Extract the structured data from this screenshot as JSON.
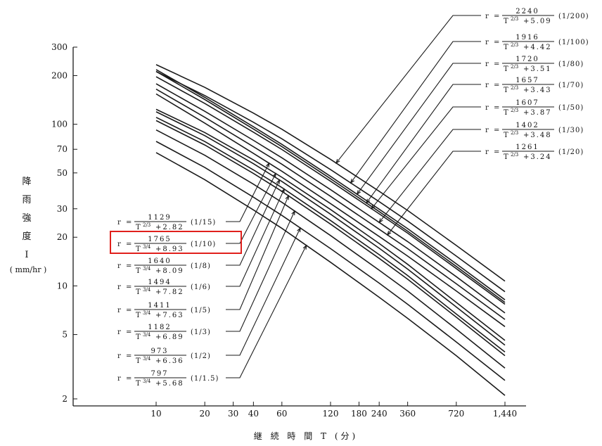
{
  "chart_data": {
    "type": "line",
    "title": "",
    "xlabel": "継 続 時 間 T (分)",
    "ylabel_chars": [
      "降",
      "雨",
      "強",
      "度",
      "I"
    ],
    "ylabel_unit": "( mm/hr )",
    "x_scale": "log",
    "y_scale": "log",
    "xlim": [
      10,
      1440
    ],
    "ylim": [
      2,
      300
    ],
    "x_ticks": [
      10,
      20,
      30,
      40,
      60,
      120,
      180,
      240,
      360,
      720,
      1440
    ],
    "x_tick_labels": [
      "10",
      "20",
      "30",
      "40",
      "60",
      "120",
      "180",
      "240",
      "360",
      "720",
      "1,440"
    ],
    "y_ticks": [
      2,
      5,
      10,
      20,
      30,
      50,
      70,
      100,
      200,
      300
    ],
    "y_tick_labels": [
      "2",
      "5",
      "10",
      "20",
      "30",
      "50",
      "70",
      "100",
      "200",
      "300"
    ],
    "grid": false,
    "x": [
      10,
      20,
      40,
      60,
      120,
      240,
      360,
      720,
      1440
    ],
    "series": [
      {
        "name": "(1/200)",
        "formula": {
          "prefix": "r =",
          "num": "2240",
          "den_base": "T",
          "den_exp": "2/3",
          "den_const": "+5.09"
        },
        "values": [
          233.7,
          169.1,
          117.2,
          93.2,
          60.6,
          38.5,
          29.3,
          17.8,
          10.7
        ]
      },
      {
        "name": "(1/100)",
        "formula": {
          "prefix": "r =",
          "num": "1916",
          "den_base": "T",
          "den_exp": "2/3",
          "den_const": "+4.42"
        },
        "values": [
          211.9,
          150.6,
          102.9,
          81.3,
          52.4,
          33.2,
          25.2,
          15.3,
          9.2
        ]
      },
      {
        "name": "(1/80)",
        "formula": {
          "prefix": "r =",
          "num": "1720",
          "den_base": "T",
          "den_exp": "2/3",
          "den_const": "+3.51"
        },
        "values": [
          218.0,
          146.5,
          96.5,
          75.1,
          47.6,
          29.8,
          22.6,
          13.7,
          8.2
        ]
      },
      {
        "name": "(1/70)",
        "formula": {
          "prefix": "r =",
          "num": "1657",
          "den_base": "T",
          "den_exp": "2/3",
          "den_const": "+3.43"
        },
        "values": [
          212.3,
          142.2,
          93.4,
          72.7,
          46.0,
          28.8,
          21.8,
          13.2,
          7.9
        ]
      },
      {
        "name": "(1/50)",
        "formula": {
          "prefix": "r =",
          "num": "1607",
          "den_base": "T",
          "den_exp": "2/3",
          "den_const": "+3.87"
        },
        "values": [
          196.7,
          134.4,
          89.3,
          69.8,
          44.4,
          27.9,
          21.2,
          12.8,
          7.7
        ]
      },
      {
        "name": "(1/30)",
        "formula": {
          "prefix": "r =",
          "num": "1402",
          "den_base": "T",
          "den_exp": "2/3",
          "den_const": "+3.48"
        },
        "values": [
          177.9,
          120.3,
          79.5,
          62.0,
          39.4,
          24.7,
          18.8,
          11.4,
          6.8
        ]
      },
      {
        "name": "(1/20)",
        "formula": {
          "prefix": "r =",
          "num": "1261",
          "den_base": "T",
          "den_exp": "2/3",
          "den_const": "+3.24"
        },
        "values": [
          164.9,
          110.5,
          72.6,
          56.6,
          35.8,
          22.4,
          17.0,
          10.3,
          6.2
        ]
      },
      {
        "name": "(1/15)",
        "formula": {
          "prefix": "r =",
          "num": "1129",
          "den_base": "T",
          "den_exp": "2/3",
          "den_const": "+2.82"
        },
        "values": [
          154.0,
          101.5,
          66.0,
          51.2,
          32.3,
          20.2,
          15.3,
          9.3,
          5.6
        ]
      },
      {
        "name": "(1/10)",
        "formula": {
          "prefix": "r =",
          "num": "1765",
          "den_base": "T",
          "den_exp": "3/4",
          "den_const": "+8.93"
        },
        "values": [
          123.7,
          88.9,
          60.2,
          47.0,
          29.7,
          18.3,
          13.6,
          7.9,
          4.6
        ]
      },
      {
        "name": "(1/8)",
        "formula": {
          "prefix": "r =",
          "num": "1640",
          "den_base": "T",
          "den_exp": "3/4",
          "den_const": "+8.09"
        },
        "values": [
          119.5,
          85.0,
          57.0,
          44.3,
          27.8,
          17.1,
          12.7,
          7.4,
          4.3
        ]
      },
      {
        "name": "(1/6)",
        "formula": {
          "prefix": "r =",
          "num": "1494",
          "den_base": "T",
          "den_exp": "3/4",
          "den_const": "+7.82"
        },
        "values": [
          110.4,
          78.2,
          52.2,
          40.6,
          25.4,
          15.6,
          11.6,
          6.7,
          3.9
        ]
      },
      {
        "name": "(1/5)",
        "formula": {
          "prefix": "r =",
          "num": "1411",
          "den_base": "T",
          "den_exp": "3/4",
          "den_const": "+7.63"
        },
        "values": [
          105.4,
          74.4,
          49.6,
          38.5,
          24.1,
          14.8,
          11.0,
          6.4,
          3.7
        ]
      },
      {
        "name": "(1/3)",
        "formula": {
          "prefix": "r =",
          "num": "1182",
          "den_base": "T",
          "den_exp": "3/4",
          "den_const": "+6.89"
        },
        "values": [
          92.2,
          64.3,
          42.6,
          32.9,
          20.5,
          12.5,
          9.3,
          5.4,
          3.1
        ]
      },
      {
        "name": "(1/2)",
        "formula": {
          "prefix": "r =",
          "num": "973",
          "den_base": "T",
          "den_exp": "3/4",
          "den_const": "+6.36"
        },
        "values": [
          78.3,
          54.0,
          35.4,
          27.3,
          17.0,
          10.4,
          7.7,
          4.5,
          2.6
        ]
      },
      {
        "name": "(1/1.5)",
        "formula": {
          "prefix": "r =",
          "num": "797",
          "den_base": "T",
          "den_exp": "3/4",
          "den_const": "+5.68"
        },
        "values": [
          66.8,
          45.4,
          29.5,
          22.7,
          14.0,
          8.5,
          6.3,
          3.7,
          2.1
        ]
      }
    ],
    "highlight": {
      "series": "(1/10)",
      "color": "#e0201c"
    }
  }
}
